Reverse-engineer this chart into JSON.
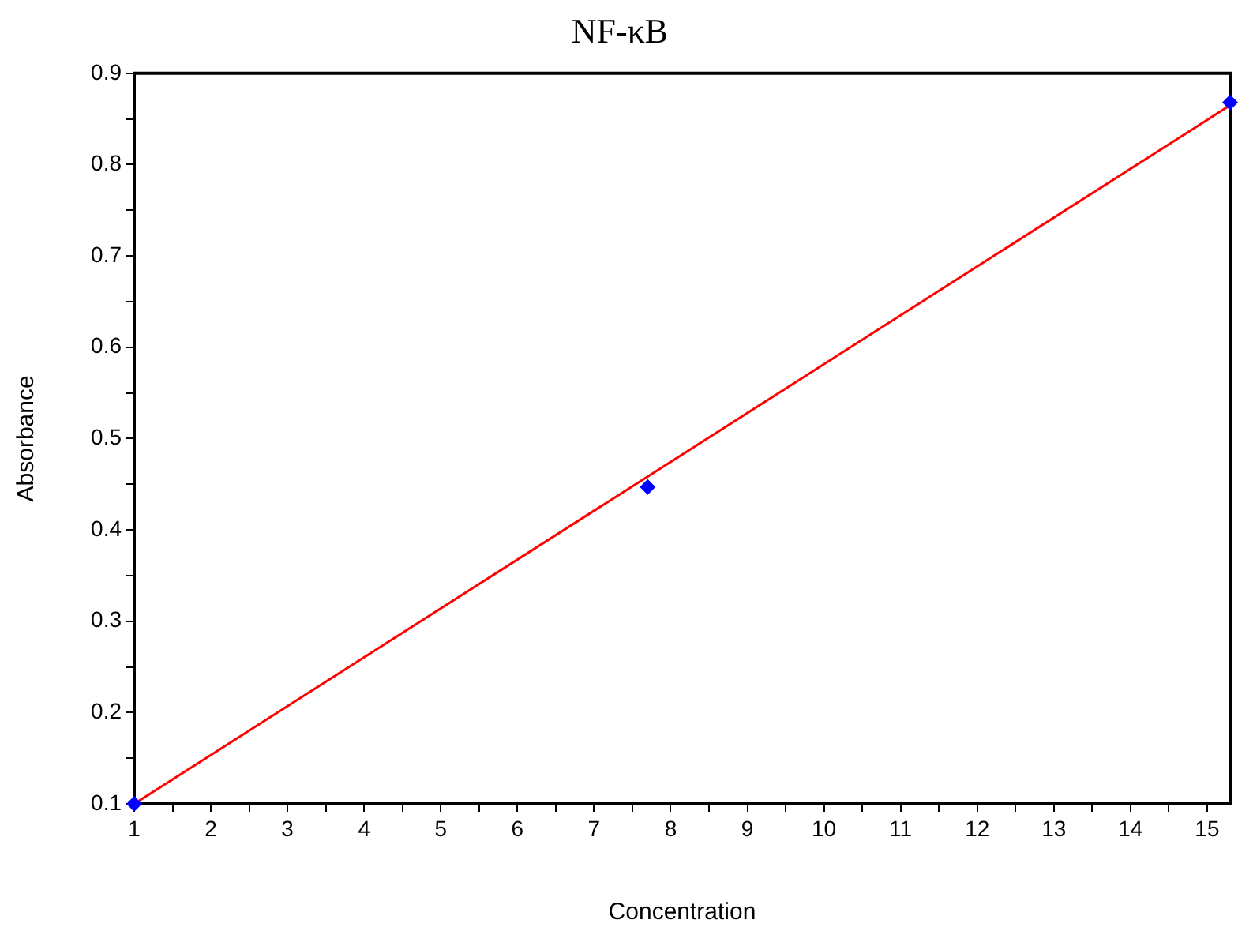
{
  "chart_data": {
    "type": "scatter",
    "title": "NF-κB",
    "xlabel": "Concentration",
    "ylabel": "Absorbance",
    "xlim": [
      1,
      15.3
    ],
    "ylim": [
      0.1,
      0.9
    ],
    "xticks": [
      1,
      {
        "value": 1.5,
        "label": null
      },
      2,
      {
        "value": 2.5,
        "label": null
      },
      3,
      {
        "value": 3.5,
        "label": null
      },
      4,
      {
        "value": 4.5,
        "label": null
      },
      5,
      {
        "value": 5.5,
        "label": null
      },
      6,
      {
        "value": 6.5,
        "label": null
      },
      7,
      {
        "value": 7.5,
        "label": null
      },
      8,
      {
        "value": 8.5,
        "label": null
      },
      9,
      {
        "value": 9.5,
        "label": null
      },
      10,
      {
        "value": 10.5,
        "label": null
      },
      11,
      {
        "value": 11.5,
        "label": null
      },
      12,
      {
        "value": 12.5,
        "label": null
      },
      13,
      {
        "value": 13.5,
        "label": null
      },
      14,
      {
        "value": 14.5,
        "label": null
      },
      15
    ],
    "yticks": [
      0.1,
      {
        "value": 0.15,
        "label": null
      },
      0.2,
      {
        "value": 0.25,
        "label": null
      },
      0.3,
      {
        "value": 0.35,
        "label": null
      },
      0.4,
      {
        "value": 0.45,
        "label": null
      },
      0.5,
      {
        "value": 0.55,
        "label": null
      },
      0.6,
      {
        "value": 0.65,
        "label": null
      },
      0.7,
      {
        "value": 0.75,
        "label": null
      },
      0.8,
      {
        "value": 0.85,
        "label": null
      },
      0.9
    ],
    "grid": false,
    "legend": false,
    "series": [
      {
        "type": "line",
        "color": "#ff0000",
        "x": [
          1,
          15.3
        ],
        "values": [
          0.1,
          0.865
        ],
        "marker": "none",
        "line_style": "solid"
      },
      {
        "color": "#0000ff",
        "x": [
          1,
          7.7,
          15.3
        ],
        "values": [
          0.1,
          0.447,
          0.868
        ],
        "marker": "diamond"
      }
    ]
  }
}
